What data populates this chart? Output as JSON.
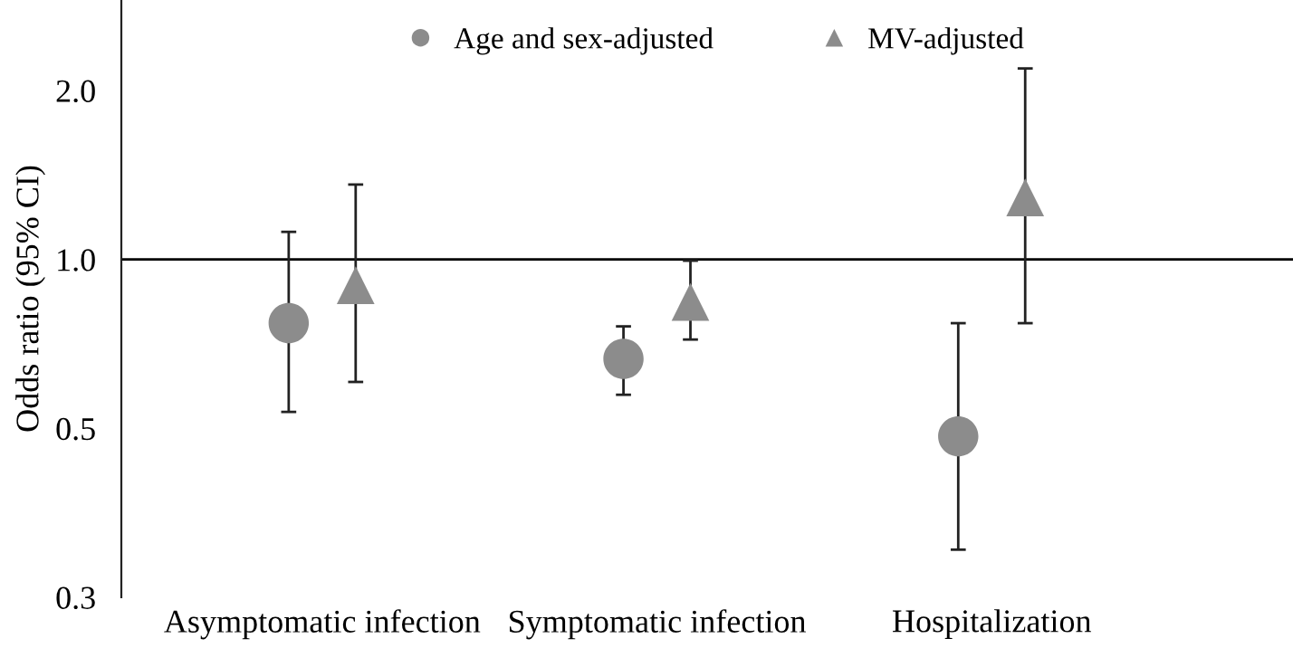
{
  "chart_data": {
    "type": "scatter",
    "ylabel": "Odds ratio (95% CI)",
    "categories": [
      "Asymptomatic infection",
      "Symptomatic infection",
      "Hospitalization"
    ],
    "series": [
      {
        "name": "Age and sex-adjusted",
        "color": "#8c8c8c",
        "marker": "circle",
        "values": [
          0.77,
          0.665,
          0.484
        ],
        "errors": [
          [
            0.535,
            1.12
          ],
          [
            0.574,
            0.76
          ],
          [
            0.304,
            0.77
          ]
        ]
      },
      {
        "name": "MV-adjusted",
        "color": "#8c8c8c",
        "marker": "triangle",
        "values": [
          0.9,
          0.84,
          1.29
        ],
        "errors": [
          [
            0.605,
            1.36
          ],
          [
            0.72,
            0.995
          ],
          [
            0.77,
            2.19
          ]
        ]
      }
    ],
    "log": "y",
    "ylim": [
      0.25,
      2.9
    ],
    "yticks": [
      {
        "value": 0.25,
        "label": "0.3"
      },
      {
        "value": 0.5,
        "label": "0.5"
      },
      {
        "value": 1.0,
        "label": "1.0"
      },
      {
        "value": 2.0,
        "label": "2.0"
      }
    ],
    "ref_lines": [
      {
        "axis": "y",
        "value": 1.0,
        "color": "#000000"
      }
    ],
    "grid": false,
    "legend": "top"
  }
}
